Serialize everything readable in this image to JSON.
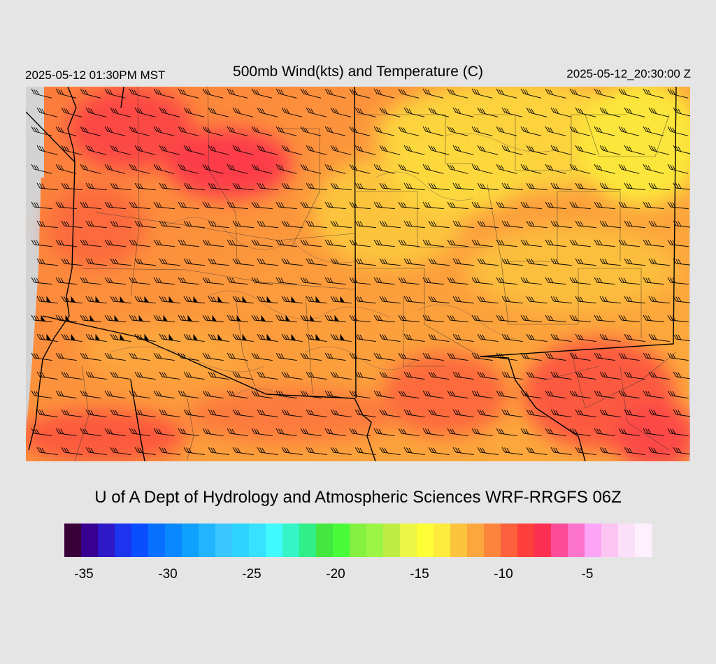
{
  "header": {
    "valid_local": "2025-05-12 01:30PM MST",
    "title": "500mb Wind(kts) and Temperature (C)",
    "valid_utc": "2025-05-12_20:30:00 Z"
  },
  "footer": {
    "credit": "U of A Dept of Hydrology and Atmospheric Sciences WRF-RRGFS 06Z"
  },
  "colorbar": {
    "colors": [
      "#3a0038",
      "#380090",
      "#2e18c8",
      "#1c34ee",
      "#0a4eff",
      "#0870ff",
      "#0a88ff",
      "#10a0ff",
      "#22b4ff",
      "#3ac6ff",
      "#2ed4ff",
      "#36e2ff",
      "#40faff",
      "#34f4c8",
      "#30ee88",
      "#44e640",
      "#48fc3a",
      "#84f040",
      "#9cf444",
      "#beee44",
      "#ecf646",
      "#fefe36",
      "#fcea3c",
      "#fcc43e",
      "#fca63e",
      "#fc843c",
      "#fc603c",
      "#fc3e3c",
      "#fc2e52",
      "#fc4c98",
      "#fc74cc",
      "#fca4f6",
      "#fcc4f2",
      "#fce0fa",
      "#fef0fe"
    ],
    "tick_labels": [
      "-35",
      "-30",
      "-25",
      "-20",
      "-15",
      "-10",
      "-5"
    ],
    "tick_values": [
      -35,
      -30,
      -25,
      -20,
      -15,
      -10,
      -5
    ],
    "min": -36,
    "max": -1
  },
  "map_layers": {
    "palette": {
      "warm_dark": "#fc3c4a",
      "warm_mid": "#fc6a3c",
      "warm": "#fc8e3a",
      "mild": "#fcb03c",
      "cool": "#fcd23c",
      "cool_light": "#fce63a",
      "nodata": "#d3d3d3"
    }
  }
}
